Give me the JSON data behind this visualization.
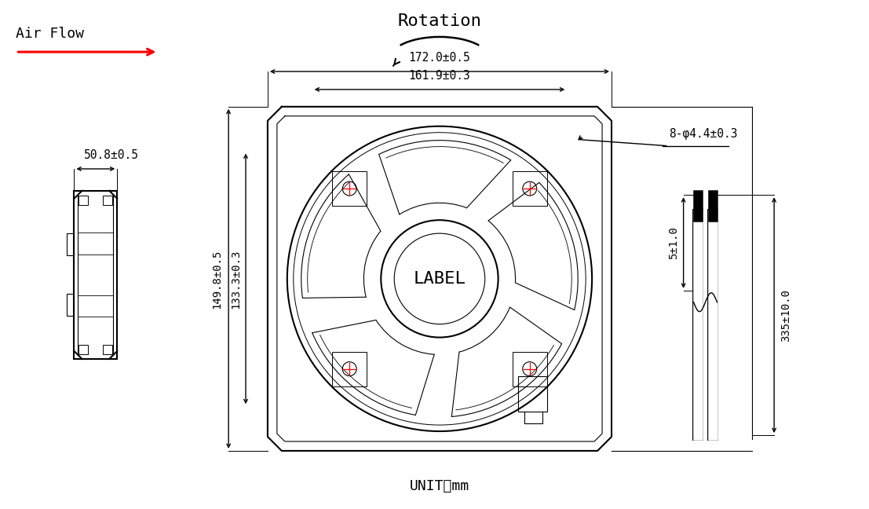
{
  "title": "Rotation",
  "airflow_label": "Air Flow",
  "unit_label": "UNIT：mm",
  "label_center": "LABEL",
  "dim_width": "172.0±0.5",
  "dim_hole_circle": "161.9±0.3",
  "dim_depth": "50.8±0.5",
  "dim_height1": "149.8±0.5",
  "dim_height2": "133.3±0.3",
  "dim_screw": "8-φ4.4±0.3",
  "dim_wire_short": "5±1.0",
  "dim_wire_long": "335±10.0",
  "bg_color": "#ffffff",
  "line_color": "#000000",
  "red_color": "#ff0000",
  "font_family": "monospace"
}
